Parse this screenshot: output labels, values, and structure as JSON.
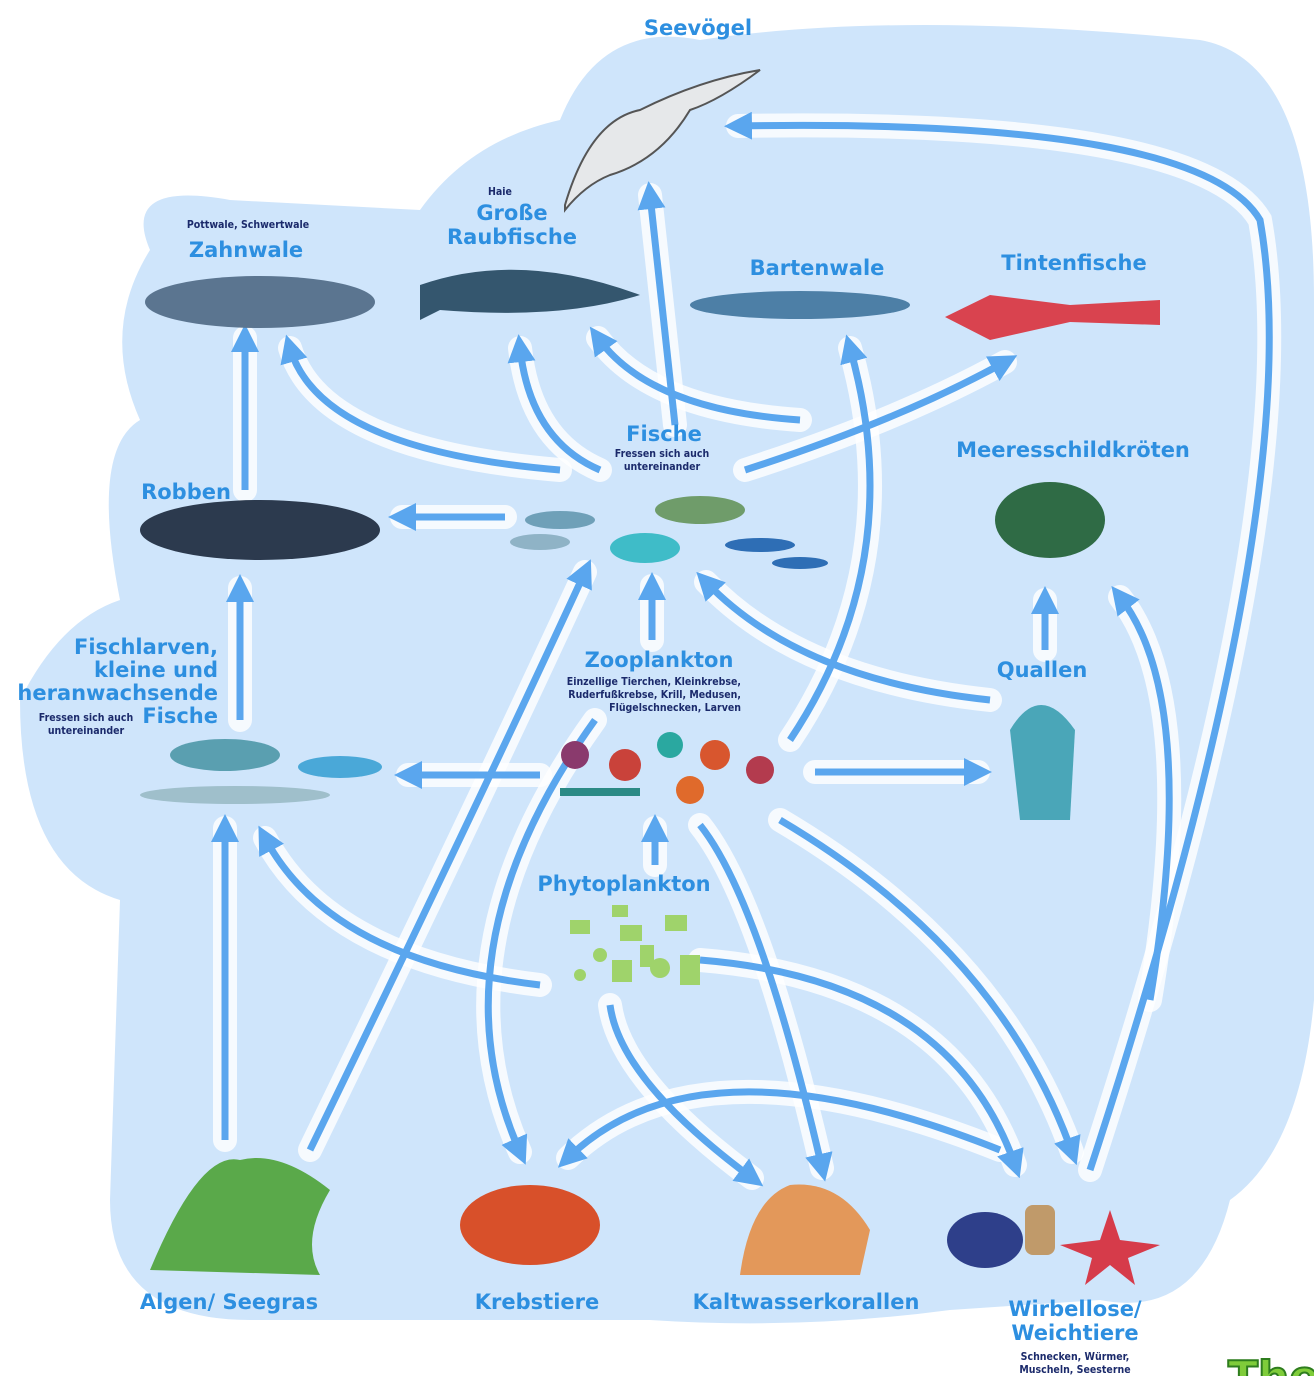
{
  "nodes": [
    {
      "label": [
        "Seevögel"
      ]
    },
    {
      "label": [
        "Zahnwale"
      ],
      "sublabel": [
        "Pottwale, Schwertwale"
      ]
    },
    {
      "label": [
        "Große",
        "Raubfische"
      ],
      "sublabel": [
        "Haie"
      ]
    },
    {
      "label": [
        "Bartenwale"
      ]
    },
    {
      "label": [
        "Tintenfische"
      ]
    },
    {
      "label": [
        "Fische"
      ],
      "sublabel": [
        "Fressen sich auch",
        "untereinander"
      ]
    },
    {
      "label": [
        "Robben"
      ]
    },
    {
      "label": [
        "Meeresschildkröten"
      ]
    },
    {
      "label": [
        "Fischlarven,",
        "kleine und",
        "heranwachsende",
        "Fische"
      ],
      "sublabel": [
        "Fressen sich auch",
        "untereinander"
      ]
    },
    {
      "label": [
        "Zooplankton"
      ],
      "sublabel": [
        "Einzellige Tierchen, Kleinkrebse,",
        "Ruderfußkrebse, Krill, Medusen,",
        "Flügelschnecken, Larven"
      ]
    },
    {
      "label": [
        "Quallen"
      ]
    },
    {
      "label": [
        "Phytoplankton"
      ]
    },
    {
      "label": [
        "Algen/ Seegras"
      ]
    },
    {
      "label": [
        "Krebstiere"
      ]
    },
    {
      "label": [
        "Kaltwasserkorallen"
      ]
    },
    {
      "label": [
        "Wirbellose/",
        "Weichtiere"
      ],
      "sublabel": [
        "Schnecken, Würmer,",
        "Muscheln, Seesterne"
      ]
    }
  ],
  "logo": "The"
}
